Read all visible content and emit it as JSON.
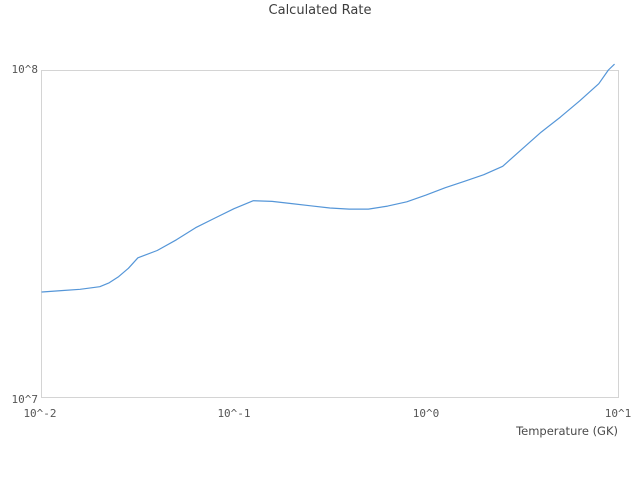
{
  "chart_data": {
    "type": "line",
    "title": "Calculated Rate",
    "xlabel": "Temperature (GK)",
    "ylabel": "",
    "x_scale": "log",
    "y_scale": "log",
    "xlim": [
      0.01,
      10
    ],
    "ylim": [
      10000000.0,
      100000000.0
    ],
    "x_tick_values": [
      0.01,
      0.1,
      1,
      10
    ],
    "x_tick_labels": [
      "10^-2",
      "10^-1",
      "10^0",
      "10^1"
    ],
    "y_tick_values": [
      10000000.0,
      100000000.0
    ],
    "y_tick_labels": [
      "10^7",
      "10^8"
    ],
    "grid": false,
    "legend": false,
    "line_color": "#5596d8",
    "border_color": "#d4d4d4",
    "title_color": "#3d3d3d",
    "tick_color": "#555555",
    "series": [
      {
        "name": "Calculated Rate",
        "x": [
          0.01,
          0.0126,
          0.0158,
          0.02,
          0.0224,
          0.0251,
          0.0282,
          0.0316,
          0.0398,
          0.0501,
          0.0631,
          0.0794,
          0.1,
          0.126,
          0.158,
          0.2,
          0.251,
          0.316,
          0.398,
          0.501,
          0.631,
          0.794,
          1.0,
          1.26,
          1.58,
          2.0,
          2.51,
          3.16,
          3.98,
          5.01,
          6.31,
          7.94,
          8.91,
          9.55
        ],
        "y": [
          21000000.0,
          21200000.0,
          21400000.0,
          21800000.0,
          22400000.0,
          23400000.0,
          24800000.0,
          26700000.0,
          28100000.0,
          30300000.0,
          33000000.0,
          35300000.0,
          37700000.0,
          39900000.0,
          39700000.0,
          39100000.0,
          38500000.0,
          37900000.0,
          37600000.0,
          37600000.0,
          38400000.0,
          39600000.0,
          41500000.0,
          43700000.0,
          45700000.0,
          47900000.0,
          50800000.0,
          57300000.0,
          64600000.0,
          71800000.0,
          80500000.0,
          90800000.0,
          100000000.0,
          104000000.0
        ]
      }
    ]
  }
}
